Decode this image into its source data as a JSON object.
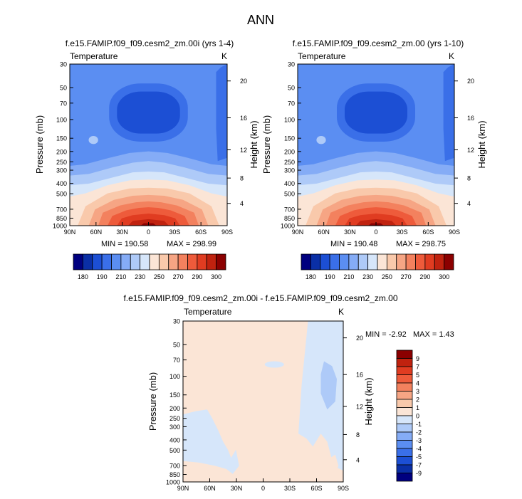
{
  "figure_title": "ANN",
  "colors": {
    "cool": [
      "#00007f",
      "#0a2fa6",
      "#1c4fd4",
      "#3a6fe8",
      "#5b8ef2",
      "#85acf6",
      "#aecaf8",
      "#d6e6fa"
    ],
    "warm": [
      "#fbe5d6",
      "#f9c9ab",
      "#f6a584",
      "#f3815e",
      "#ee5b3b",
      "#e03c21",
      "#c0220f",
      "#8b0000"
    ],
    "diff_warm": "#fbe5d6",
    "diff_cool": "#d6e6fa",
    "diff_mid": "#aecaf8"
  },
  "chart_data": [
    {
      "type": "heatmap",
      "title": "f.e15.FAMIP.f09_f09.cesm2_zm.00i (yrs 1-4)",
      "variable_label": "Temperature",
      "units_label": "K",
      "ylabel": "Pressure (mb)",
      "ylabel_right": "Height (km)",
      "x_ticks": [
        "90N",
        "60N",
        "30N",
        "0",
        "30S",
        "60S",
        "90S"
      ],
      "y_ticks": [
        "30",
        "50",
        "70",
        "100",
        "150",
        "200",
        "250",
        "300",
        "400",
        "500",
        "700",
        "850",
        "1000"
      ],
      "y_ticks_right": [
        "20",
        "16",
        "12",
        "8",
        "4"
      ],
      "min_label": "MIN = 190.58",
      "max_label": "MAX = 298.99",
      "min": 190.58,
      "max": 298.99,
      "colorbar_labels": [
        "180",
        "190",
        "210",
        "230",
        "250",
        "270",
        "290",
        "300"
      ]
    },
    {
      "type": "heatmap",
      "title": "f.e15.FAMIP.f09_f09.cesm2_zm.00 (yrs 1-10)",
      "variable_label": "Temperature",
      "units_label": "K",
      "ylabel": "Pressure (mb)",
      "ylabel_right": "Height (km)",
      "x_ticks": [
        "90N",
        "60N",
        "30N",
        "0",
        "30S",
        "60S",
        "90S"
      ],
      "y_ticks": [
        "30",
        "50",
        "70",
        "100",
        "150",
        "200",
        "250",
        "300",
        "400",
        "500",
        "700",
        "850",
        "1000"
      ],
      "y_ticks_right": [
        "20",
        "16",
        "12",
        "8",
        "4"
      ],
      "min_label": "MIN = 190.48",
      "max_label": "MAX = 298.75",
      "min": 190.48,
      "max": 298.75,
      "colorbar_labels": [
        "180",
        "190",
        "210",
        "230",
        "250",
        "270",
        "290",
        "300"
      ]
    },
    {
      "type": "heatmap",
      "title": "f.e15.FAMIP.f09_f09.cesm2_zm.00i - f.e15.FAMIP.f09_f09.cesm2_zm.00",
      "variable_label": "Temperature",
      "units_label": "K",
      "ylabel": "Pressure (mb)",
      "ylabel_right": "Height (km)",
      "x_ticks": [
        "90N",
        "60N",
        "30N",
        "0",
        "30S",
        "60S",
        "90S"
      ],
      "y_ticks": [
        "30",
        "50",
        "70",
        "100",
        "150",
        "200",
        "250",
        "300",
        "400",
        "500",
        "700",
        "850",
        "1000"
      ],
      "y_ticks_right": [
        "20",
        "16",
        "12",
        "8",
        "4"
      ],
      "min_label": "MIN =  -2.92",
      "max_label": "MAX =   1.43",
      "min": -2.92,
      "max": 1.43,
      "colorbar_labels": [
        "9",
        "7",
        "5",
        "4",
        "3",
        "2",
        "1",
        "0",
        "-1",
        "-2",
        "-3",
        "-4",
        "-5",
        "-7",
        "-9"
      ]
    }
  ]
}
